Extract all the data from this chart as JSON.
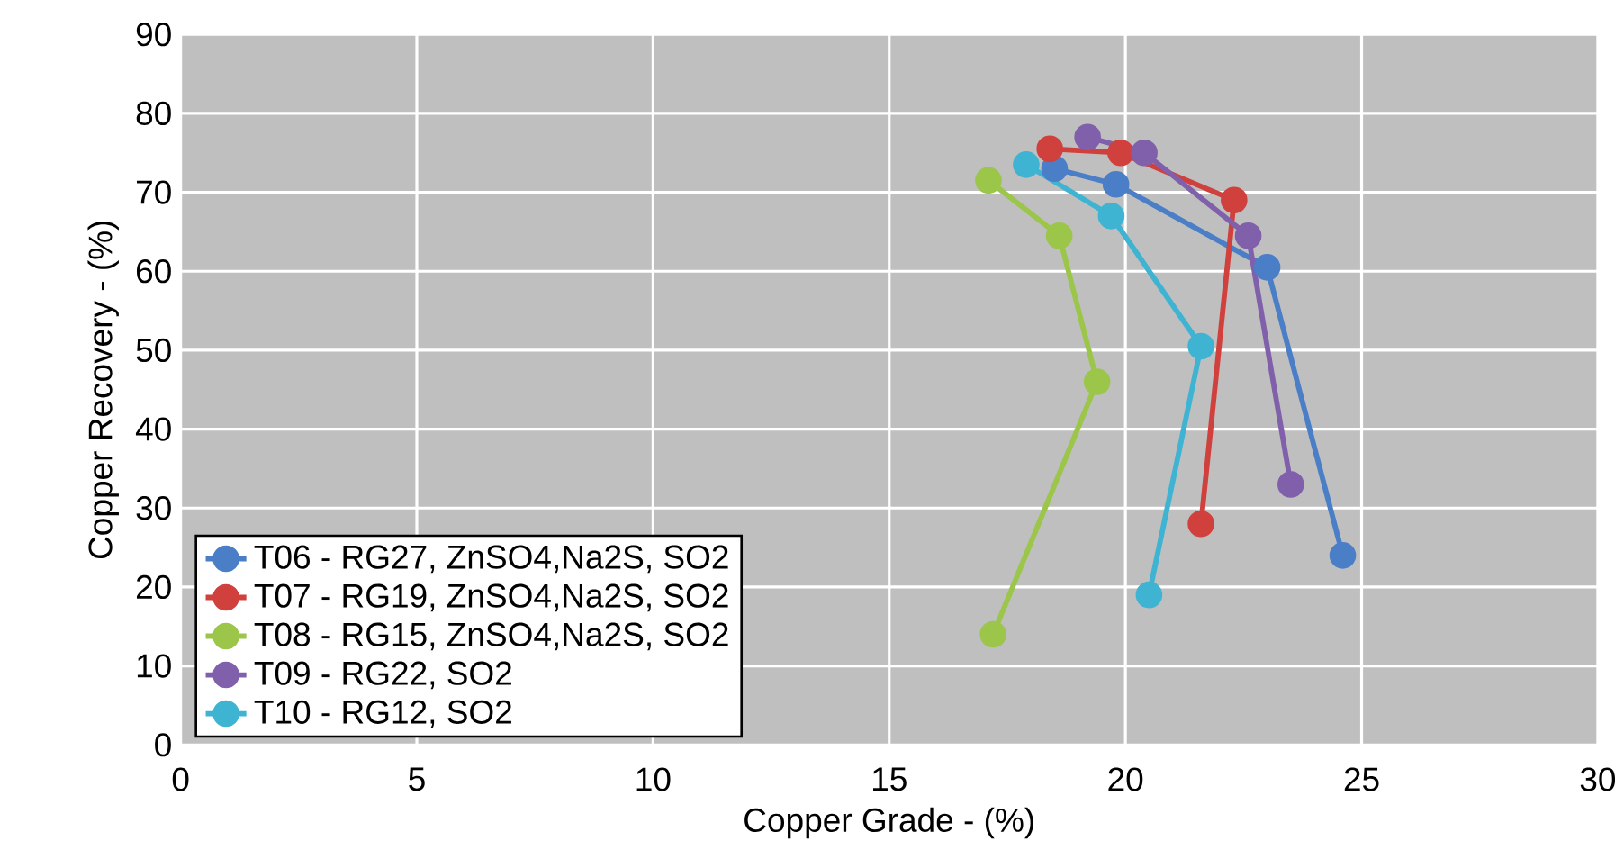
{
  "chart_data": {
    "type": "line",
    "xlabel": "Copper Grade - (%)",
    "ylabel": "Copper Recovery - (%)",
    "xlim": [
      0,
      30
    ],
    "xticks": [
      0,
      5,
      10,
      15,
      20,
      25,
      30
    ],
    "ylim": [
      0,
      90
    ],
    "yticks": [
      0,
      10,
      20,
      30,
      40,
      50,
      60,
      70,
      80,
      90
    ],
    "grid": true,
    "legend": "bottom left",
    "marker": "circle",
    "line_style": "solid",
    "series": [
      {
        "name": "T06 - RG27, ZnSO4,Na2S, SO2",
        "color": "#4a7ec7",
        "x": [
          18.5,
          19.8,
          23.0,
          24.6
        ],
        "values": [
          73,
          71,
          60.5,
          24
        ]
      },
      {
        "name": "T07 - RG19, ZnSO4,Na2S, SO2",
        "color": "#d0403c",
        "x": [
          18.4,
          19.9,
          22.3,
          21.6
        ],
        "values": [
          75.5,
          75,
          69,
          28
        ]
      },
      {
        "name": "T08 - RG15, ZnSO4,Na2S, SO2",
        "color": "#9bc64a",
        "x": [
          17.1,
          18.6,
          19.4,
          17.2
        ],
        "values": [
          71.5,
          64.5,
          46,
          14
        ]
      },
      {
        "name": "T09 - RG22, SO2",
        "color": "#8060aa",
        "x": [
          19.2,
          20.4,
          22.6,
          23.5
        ],
        "values": [
          77,
          75,
          64.5,
          33
        ]
      },
      {
        "name": "T10 - RG12, SO2",
        "color": "#3fb3d2",
        "x": [
          17.9,
          19.7,
          21.6,
          20.5
        ],
        "values": [
          73.5,
          67,
          50.5,
          19
        ]
      }
    ]
  }
}
